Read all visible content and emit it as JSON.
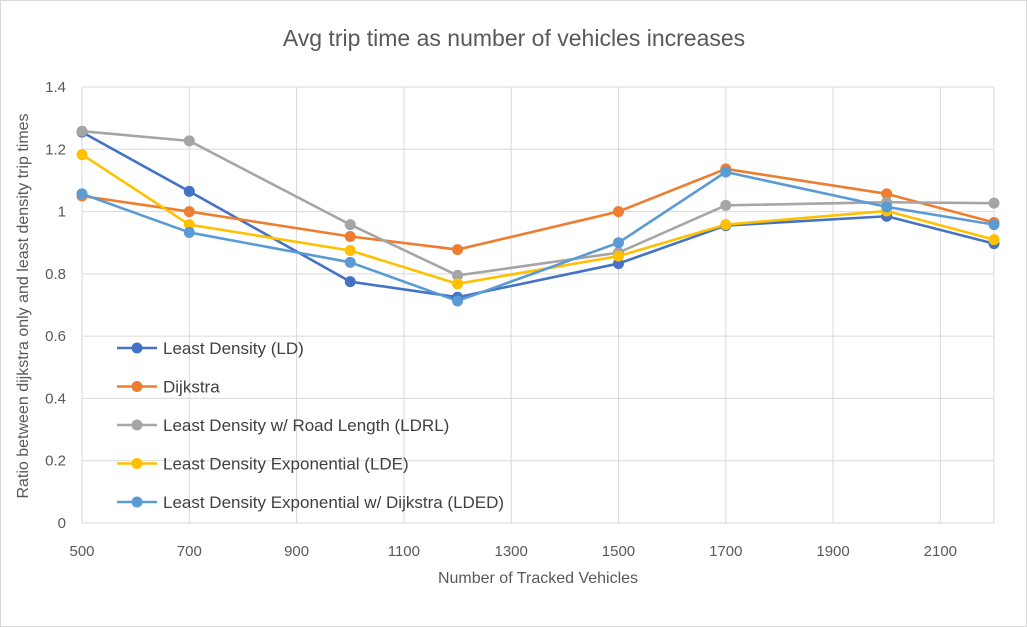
{
  "chart_data": {
    "type": "line",
    "title": "Avg trip time as number of vehicles increases",
    "xlabel": "Number of Tracked Vehicles",
    "ylabel": "Ratio between dijkstra only and least density trip times",
    "xlim": [
      500,
      2200
    ],
    "xticks": [
      500,
      700,
      900,
      1100,
      1300,
      1500,
      1700,
      1900,
      2100
    ],
    "ylim": [
      0,
      1.4
    ],
    "yticks": [
      0,
      0.2,
      0.4,
      0.6,
      0.8,
      1,
      1.2,
      1.4
    ],
    "grid": true,
    "legend_position": "left-inside",
    "x": [
      500,
      700,
      1000,
      1200,
      1500,
      1700,
      2000,
      2200
    ],
    "series": [
      {
        "name": "Least Density (LD)",
        "color": "#4472c4",
        "values": [
          1.255,
          1.065,
          0.775,
          0.725,
          0.833,
          0.955,
          0.985,
          0.897
        ]
      },
      {
        "name": "Dijkstra",
        "color": "#ed7d31",
        "values": [
          1.05,
          1.0,
          0.92,
          0.878,
          1.0,
          1.137,
          1.057,
          0.965
        ]
      },
      {
        "name": "Least Density w/ Road Length (LDRL)",
        "color": "#a5a5a5",
        "values": [
          1.258,
          1.227,
          0.958,
          0.795,
          0.868,
          1.02,
          1.03,
          1.027
        ]
      },
      {
        "name": "Least Density Exponential (LDE)",
        "color": "#ffc000",
        "values": [
          1.183,
          0.958,
          0.875,
          0.768,
          0.857,
          0.958,
          1.002,
          0.91
        ]
      },
      {
        "name": "Least Density Exponential w/ Dijkstra (LDED)",
        "color": "#5b9bd5",
        "values": [
          1.057,
          0.933,
          0.837,
          0.713,
          0.9,
          1.127,
          1.015,
          0.958
        ]
      }
    ]
  }
}
